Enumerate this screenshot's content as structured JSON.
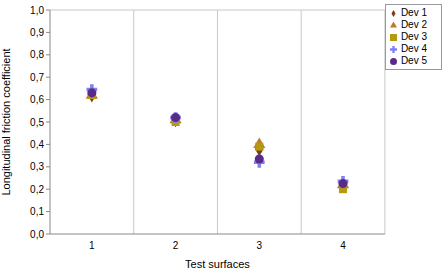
{
  "chart_data": {
    "type": "scatter",
    "x_label": "Test surfaces",
    "y_label": "Longitudinal friction coefficient",
    "x": [
      1,
      2,
      3,
      4
    ],
    "xlim": [
      0.5,
      4.5
    ],
    "xticks": [
      1,
      2,
      3,
      4
    ],
    "ylim": [
      0,
      1
    ],
    "yticks": [
      {
        "value": 0,
        "label": "0,0"
      },
      {
        "value": 0.1,
        "label": "0,1"
      },
      {
        "value": 0.2,
        "label": "0,2"
      },
      {
        "value": 0.3,
        "label": "0,3"
      },
      {
        "value": 0.4,
        "label": "0,4"
      },
      {
        "value": 0.5,
        "label": "0,5"
      },
      {
        "value": 0.6,
        "label": "0,6"
      },
      {
        "value": 0.7,
        "label": "0,7"
      },
      {
        "value": 0.8,
        "label": "0,8"
      },
      {
        "value": 0.9,
        "label": "0,9"
      },
      {
        "value": 1,
        "label": "1,0"
      }
    ],
    "grid": true,
    "legend": "upper right",
    "series": [
      {
        "name": "Dev 1",
        "color": "#7a3b1e",
        "marker": "diamond",
        "values": [
          0.62,
          0.51,
          0.38,
          0.22
        ]
      },
      {
        "name": "Dev 2",
        "color": "#c0782a",
        "marker": "triangle",
        "values": [
          0.62,
          0.51,
          0.4,
          0.22
        ]
      },
      {
        "name": "Dev 3",
        "color": "#b59a10",
        "marker": "square",
        "values": [
          0.62,
          0.5,
          0.39,
          0.2
        ]
      },
      {
        "name": "Dev 4",
        "color": "#8080f0",
        "marker": "cross",
        "values": [
          0.645,
          0.52,
          0.32,
          0.235
        ]
      },
      {
        "name": "Dev 5",
        "color": "#5a2a8a",
        "marker": "circle",
        "values": [
          0.63,
          0.52,
          0.335,
          0.225
        ]
      }
    ]
  }
}
